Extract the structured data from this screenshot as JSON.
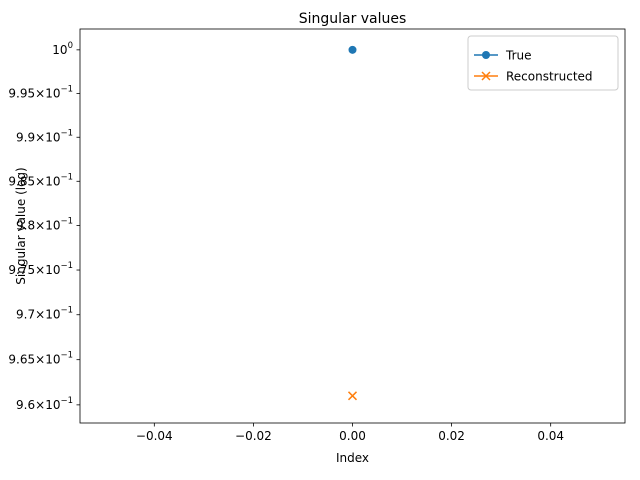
{
  "chart_data": {
    "type": "line",
    "title": "Singular values",
    "xlabel": "Index",
    "ylabel": "Singular value (log)",
    "yscale": "log",
    "xlim": [
      -0.055,
      0.055
    ],
    "ylim": [
      0.958,
      1.0024
    ],
    "x_ticks": [
      {
        "value": -0.04,
        "label": "−0.04"
      },
      {
        "value": -0.02,
        "label": "−0.02"
      },
      {
        "value": 0.0,
        "label": "0.00"
      },
      {
        "value": 0.02,
        "label": "0.02"
      },
      {
        "value": 0.04,
        "label": "0.04"
      }
    ],
    "y_ticks": [
      {
        "value": 1.0,
        "mantissa": "",
        "exponent": "0",
        "label": "10"
      },
      {
        "value": 0.995,
        "mantissa": "9.95",
        "exponent": "−1",
        "label": "10"
      },
      {
        "value": 0.99,
        "mantissa": "9.9",
        "exponent": "−1",
        "label": "10"
      },
      {
        "value": 0.985,
        "mantissa": "9.85",
        "exponent": "−1",
        "label": "10"
      },
      {
        "value": 0.98,
        "mantissa": "9.8",
        "exponent": "−1",
        "label": "10"
      },
      {
        "value": 0.975,
        "mantissa": "9.75",
        "exponent": "−1",
        "label": "10"
      },
      {
        "value": 0.97,
        "mantissa": "9.7",
        "exponent": "−1",
        "label": "10"
      },
      {
        "value": 0.965,
        "mantissa": "9.65",
        "exponent": "−1",
        "label": "10"
      },
      {
        "value": 0.96,
        "mantissa": "9.6",
        "exponent": "−1",
        "label": "10"
      }
    ],
    "series": [
      {
        "name": "True",
        "marker": "circle",
        "color": "#1f77b4",
        "x": [
          0
        ],
        "y": [
          1.0
        ]
      },
      {
        "name": "Reconstructed",
        "marker": "x",
        "color": "#ff7f0e",
        "x": [
          0
        ],
        "y": [
          0.961
        ]
      }
    ],
    "legend": "top-right",
    "grid": false
  }
}
